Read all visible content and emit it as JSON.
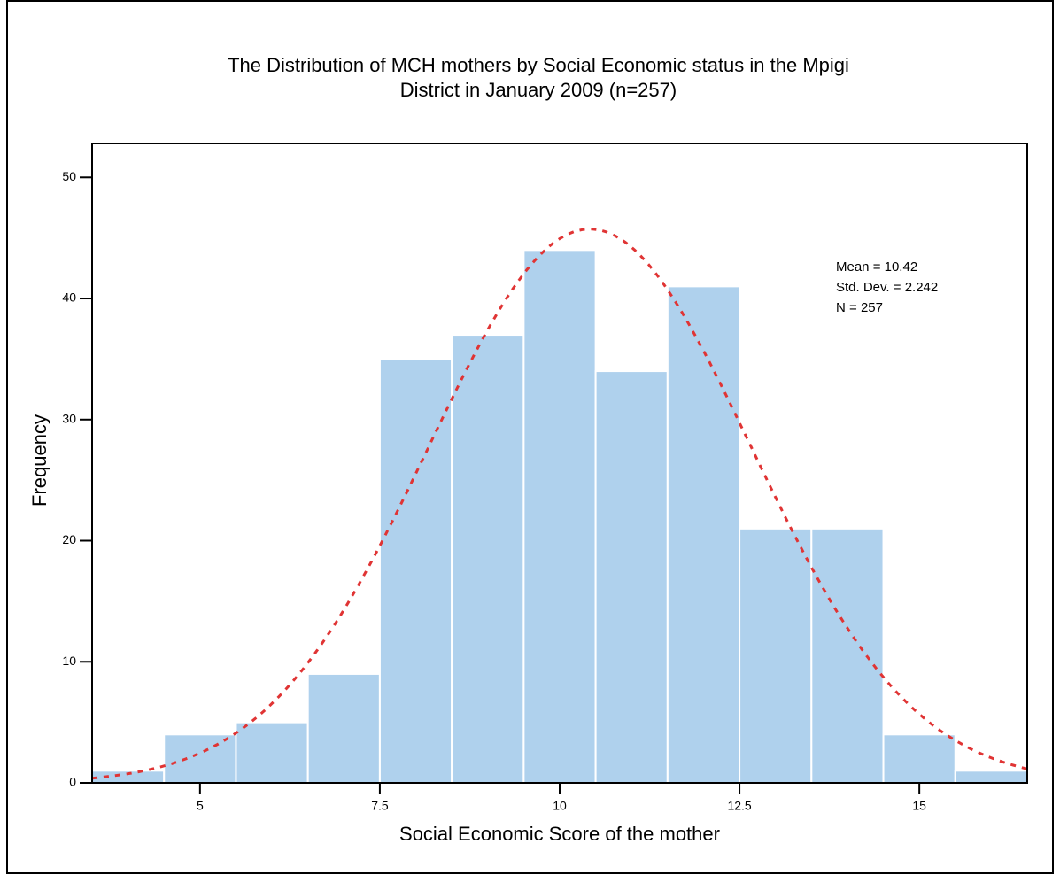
{
  "chart_data": {
    "type": "histogram",
    "title": [
      "The Distribution of MCH mothers by Social Economic status in the Mpigi",
      "District in January 2009 (n=257)"
    ],
    "xlabel": "Social Economic Score of the mother",
    "ylabel": "Frequency",
    "bins": [
      3.5,
      4.5,
      5.5,
      6.5,
      7.5,
      8.5,
      9.5,
      10.5,
      11.5,
      12.5,
      13.5,
      14.5,
      15.5,
      16.5
    ],
    "counts": [
      1,
      4,
      5,
      9,
      35,
      37,
      44,
      34,
      41,
      21,
      21,
      4,
      1
    ],
    "color": "#afd1ed",
    "curve_color": "#e03434",
    "xlim": [
      3.5,
      16.5
    ],
    "xticks": [
      5,
      7.5,
      10,
      12.5,
      15
    ],
    "ylim": [
      0,
      52.8
    ],
    "yticks": [
      0,
      10,
      20,
      30,
      40,
      50
    ],
    "stats": {
      "mean_label": "Mean =",
      "mean": 10.42,
      "sd_label": "Std. Dev. =",
      "sd": 2.242,
      "n_label": "N =",
      "n": 257
    }
  }
}
